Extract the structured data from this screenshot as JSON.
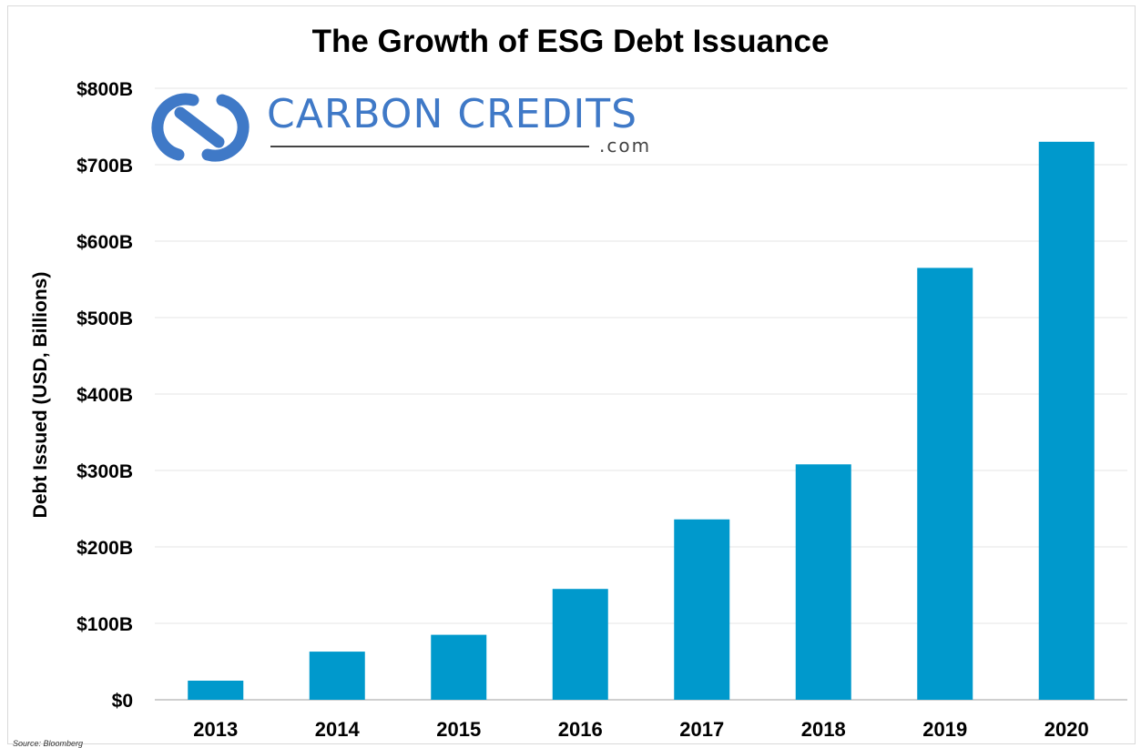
{
  "colors": {
    "bar": "#0099cc",
    "brand": "#3f79c7",
    "grid": "#e6e6e6"
  },
  "logo": {
    "text": "CARBON CREDITS",
    "domain": ".com",
    "icon": "carbon-credits-logo-icon"
  },
  "source": "Source: Bloomberg",
  "chart_data": {
    "type": "bar",
    "title": "The Growth of ESG Debt Issuance",
    "xlabel": "",
    "ylabel": "Debt Issued (USD, Billions)",
    "categories": [
      "2013",
      "2014",
      "2015",
      "2016",
      "2017",
      "2018",
      "2019",
      "2020"
    ],
    "values": [
      25,
      63,
      85,
      145,
      236,
      308,
      565,
      730
    ],
    "ylim": [
      0,
      800
    ],
    "yticks": [
      0,
      100,
      200,
      300,
      400,
      500,
      600,
      700,
      800
    ],
    "ytick_labels": [
      "$0",
      "$100B",
      "$200B",
      "$300B",
      "$400B",
      "$500B",
      "$600B",
      "$700B",
      "$800B"
    ],
    "grid": true,
    "legend": "none"
  }
}
